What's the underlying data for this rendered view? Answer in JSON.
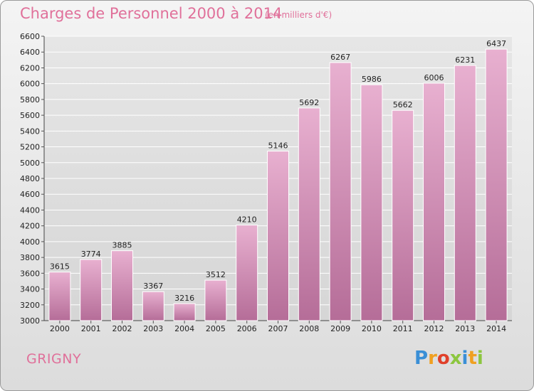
{
  "title": "Charges de Personnel 2000 à 2014",
  "subtitle": "(en milliers d'€)",
  "commune": "GRIGNY",
  "logo": {
    "letters": [
      "P",
      "r",
      "o",
      "x",
      "i",
      "t",
      "i"
    ],
    "colors": [
      "#3a8fd6",
      "#f0a020",
      "#e0402a",
      "#8cc63f",
      "#3a8fd6",
      "#f0a020",
      "#8cc63f"
    ]
  },
  "colors": {
    "bar_top": "#e8b0d0",
    "bar_bottom": "#b56d98",
    "title": "#e0709a"
  },
  "chart_data": {
    "type": "bar",
    "title": "Charges de Personnel 2000 à 2014",
    "subtitle": "(en milliers d'€)",
    "categories": [
      "2000",
      "2001",
      "2002",
      "2003",
      "2004",
      "2005",
      "2006",
      "2007",
      "2008",
      "2009",
      "2010",
      "2011",
      "2012",
      "2013",
      "2014"
    ],
    "values": [
      3615,
      3774,
      3885,
      3367,
      3216,
      3512,
      4210,
      5146,
      5692,
      6267,
      5986,
      5662,
      6006,
      6231,
      6437
    ],
    "ylim": [
      3000,
      6600
    ],
    "yticks": [
      3000,
      3200,
      3400,
      3600,
      3800,
      4000,
      4200,
      4400,
      4600,
      4800,
      5000,
      5200,
      5400,
      5600,
      5800,
      6000,
      6200,
      6400,
      6600
    ],
    "grid": true
  }
}
